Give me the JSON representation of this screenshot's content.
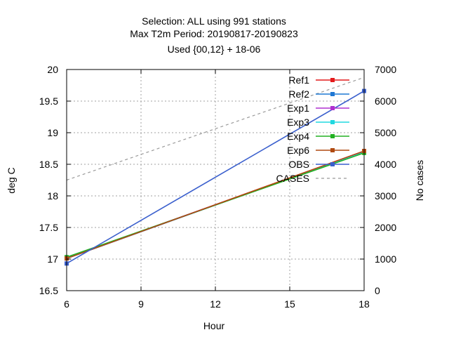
{
  "chart_data": {
    "type": "line",
    "title_lines": [
      "Selection: ALL using   991 stations",
      "Max T2m   Period: 20190817-20190823",
      "Used {00,12} + 18-06"
    ],
    "xlabel": "Hour",
    "ylabel": "deg C",
    "y2label": "No cases",
    "x_ticks": [
      6,
      9,
      12,
      15,
      18
    ],
    "xlim": [
      6,
      18
    ],
    "y_ticks": [
      16.5,
      17,
      17.5,
      18,
      18.5,
      19,
      19.5,
      20
    ],
    "y_tick_labels": [
      "16.5",
      "17",
      "17.5",
      "18",
      "18.5",
      "19",
      "19.5",
      "20"
    ],
    "ylim": [
      16.5,
      20
    ],
    "y2_ticks": [
      0,
      1000,
      2000,
      3000,
      4000,
      5000,
      6000,
      7000
    ],
    "y2lim": [
      0,
      7000
    ],
    "grid": true,
    "legend_position": "top-right",
    "series": [
      {
        "name": "Ref1",
        "color": "#e41a1c",
        "axis": "y1",
        "x": [
          6,
          18
        ],
        "values": [
          17.01,
          18.71
        ]
      },
      {
        "name": "Ref2",
        "color": "#1f78d4",
        "axis": "y1",
        "x": [
          6,
          18
        ],
        "values": [
          17.01,
          18.7
        ]
      },
      {
        "name": "Exp1",
        "color": "#b030d0",
        "axis": "y1",
        "x": [
          6,
          18
        ],
        "values": [
          17.02,
          18.7
        ]
      },
      {
        "name": "Exp3",
        "color": "#20d8e0",
        "axis": "y1",
        "x": [
          6,
          18
        ],
        "values": [
          17.02,
          18.69
        ]
      },
      {
        "name": "Exp4",
        "color": "#22b022",
        "axis": "y1",
        "x": [
          6,
          18
        ],
        "values": [
          17.03,
          18.68
        ]
      },
      {
        "name": "Exp6",
        "color": "#b04a10",
        "axis": "y1",
        "x": [
          6,
          18
        ],
        "values": [
          17.01,
          18.71
        ]
      },
      {
        "name": "OBS",
        "color": "#3a5fcd",
        "axis": "y1",
        "x": [
          6,
          18
        ],
        "values": [
          16.93,
          19.66
        ]
      },
      {
        "name": "CASES",
        "color": "#9a9a9a",
        "axis": "y2",
        "dashed": true,
        "x": [
          6,
          18
        ],
        "values": [
          3500,
          6750
        ]
      }
    ]
  }
}
